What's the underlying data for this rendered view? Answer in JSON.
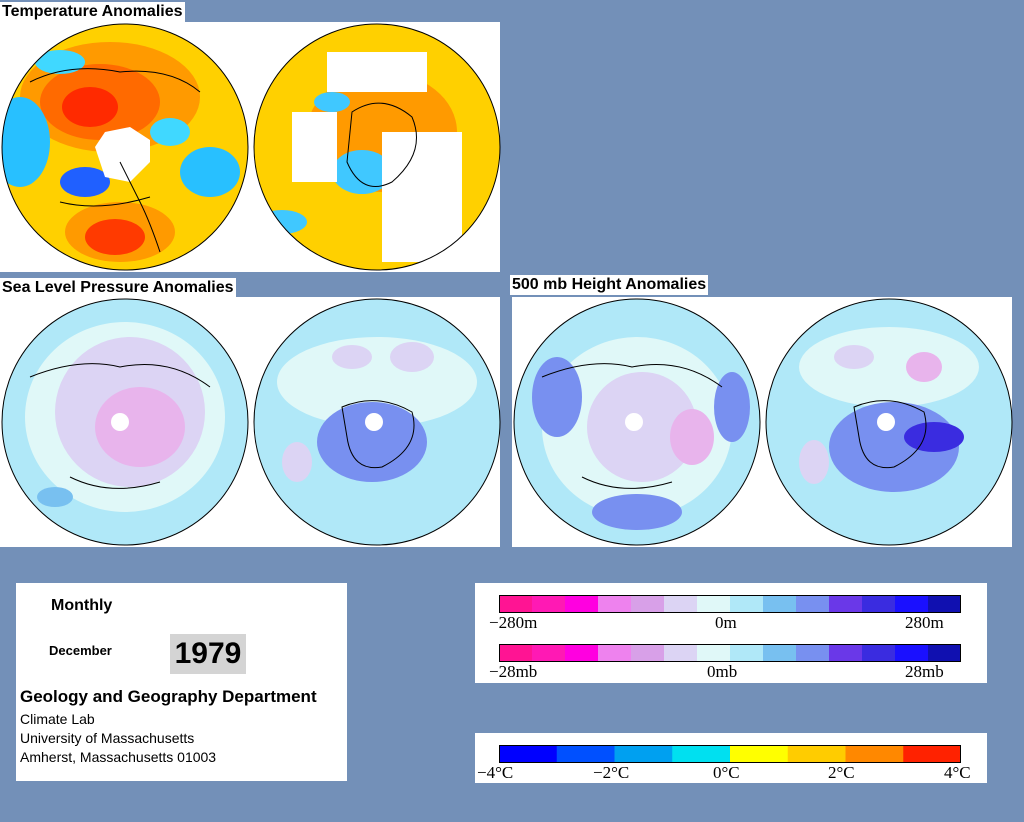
{
  "titles": {
    "temperature": "Temperature Anomalies",
    "slp": "Sea Level Pressure Anomalies",
    "height": "500 mb Height Anomalies"
  },
  "info": {
    "period": "Monthly",
    "month": "December",
    "year": "1979",
    "department": "Geology and Geography Department",
    "lab": "Climate Lab",
    "university": "University of Massachusetts",
    "address": "Amherst, Massachusetts 01003"
  },
  "legends": {
    "height": {
      "min": "−280m",
      "mid": "0m",
      "max": "280m"
    },
    "pressure": {
      "min": "−28mb",
      "mid": "0mb",
      "max": "28mb"
    },
    "temperature": {
      "neg4": "−4°C",
      "neg2": "−2°C",
      "zero": "0°C",
      "pos2": "2°C",
      "pos4": "4°C"
    }
  },
  "colors": {
    "background": "#7390b8",
    "anomaly_scale": [
      "#ff1493",
      "#ff19b4",
      "#ff00e0",
      "#ee82ee",
      "#d8a0e8",
      "#dcd4f4",
      "#e0f8f8",
      "#b0e8f8",
      "#78c0f0",
      "#7890f0",
      "#6a38e8",
      "#3a2ce0",
      "#1a10ff",
      "#1010b0"
    ],
    "temperature_scale": [
      "#0000ff",
      "#0050ff",
      "#00a0f0",
      "#00e0f0",
      "#ffff00",
      "#ffcc00",
      "#ff8800",
      "#ff2200"
    ]
  }
}
